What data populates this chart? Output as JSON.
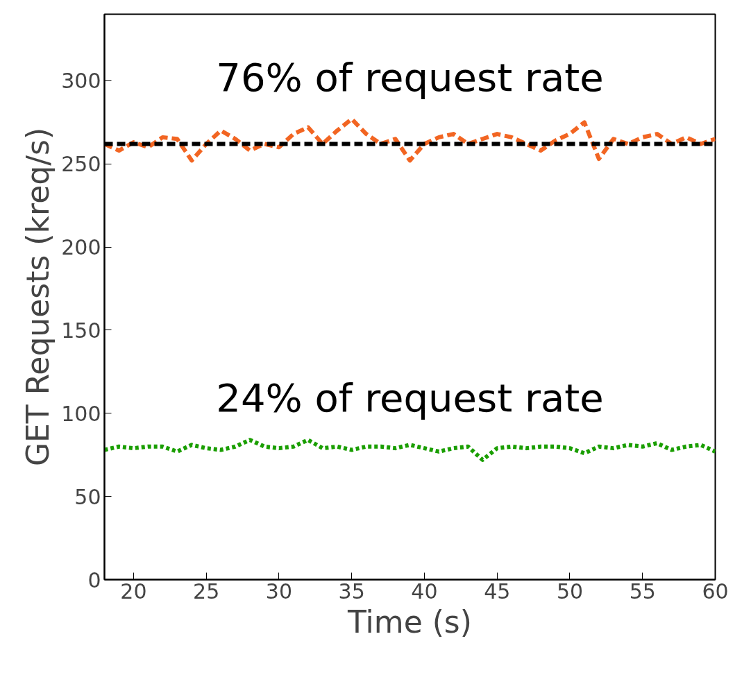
{
  "chart_data": {
    "type": "line",
    "xlabel": "Time (s)",
    "ylabel": "GET Requests (kreq/s)",
    "xlim": [
      18,
      60
    ],
    "xticks": [
      20,
      25,
      30,
      35,
      40,
      45,
      50,
      55,
      60
    ],
    "ylim": [
      0,
      340
    ],
    "yticks": [
      0,
      50,
      100,
      150,
      200,
      250,
      300
    ],
    "x": [
      18,
      19,
      20,
      21,
      22,
      23,
      24,
      25,
      26,
      27,
      28,
      29,
      30,
      31,
      32,
      33,
      34,
      35,
      36,
      37,
      38,
      39,
      40,
      41,
      42,
      43,
      44,
      45,
      46,
      47,
      48,
      49,
      50,
      51,
      52,
      53,
      54,
      55,
      56,
      57,
      58,
      59,
      60
    ],
    "series": [
      {
        "color": "#f26522",
        "line_style": "dashed",
        "values": [
          262,
          258,
          263,
          260,
          266,
          265,
          252,
          262,
          270,
          265,
          258,
          262,
          260,
          268,
          272,
          262,
          270,
          277,
          268,
          262,
          265,
          252,
          262,
          266,
          268,
          262,
          265,
          268,
          266,
          262,
          258,
          264,
          268,
          275,
          253,
          265,
          262,
          266,
          268,
          262,
          266,
          262,
          265
        ]
      },
      {
        "color": "#1a9e00",
        "line_style": "dotted",
        "values": [
          78,
          80,
          79,
          80,
          80,
          77,
          81,
          79,
          78,
          80,
          84,
          80,
          79,
          80,
          84,
          79,
          80,
          78,
          80,
          80,
          79,
          81,
          79,
          77,
          79,
          80,
          72,
          79,
          80,
          79,
          80,
          80,
          79,
          76,
          80,
          79,
          81,
          80,
          82,
          78,
          80,
          81,
          77
        ]
      }
    ],
    "ref_lines": [
      {
        "axis": "y",
        "value": 262,
        "color": "#000000",
        "line_style": "dashed"
      }
    ],
    "annotations": [
      "76% of request rate",
      "24% of request rate"
    ],
    "grid": false,
    "marker": "none"
  }
}
